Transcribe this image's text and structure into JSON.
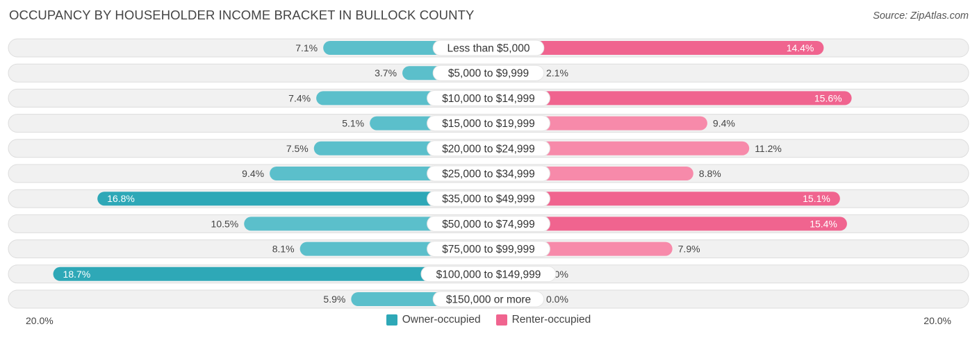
{
  "header": {
    "title": "OCCUPANCY BY HOUSEHOLDER INCOME BRACKET IN BULLOCK COUNTY",
    "source": "Source: ZipAtlas.com"
  },
  "colors": {
    "owner": "#5bbfcb",
    "owner_strong": "#2ea8b7",
    "renter": "#f78aaa",
    "renter_strong": "#f0648f",
    "row_bg": "#eeeeee"
  },
  "axis": {
    "left_label": "20.0%",
    "right_label": "20.0%"
  },
  "legend": {
    "owner_label": "Owner-occupied",
    "renter_label": "Renter-occupied"
  },
  "chart_data": {
    "type": "bar",
    "orientation": "horizontal-diverging",
    "title": "OCCUPANCY BY HOUSEHOLDER INCOME BRACKET IN BULLOCK COUNTY",
    "xlim": [
      -20,
      20
    ],
    "categories": [
      "Less than $5,000",
      "$5,000 to $9,999",
      "$10,000 to $14,999",
      "$15,000 to $19,999",
      "$20,000 to $24,999",
      "$25,000 to $34,999",
      "$35,000 to $49,999",
      "$50,000 to $74,999",
      "$75,000 to $99,999",
      "$100,000 to $149,999",
      "$150,000 or more"
    ],
    "series": [
      {
        "name": "Owner-occupied",
        "values": [
          7.1,
          3.7,
          7.4,
          5.1,
          7.5,
          9.4,
          16.8,
          10.5,
          8.1,
          18.7,
          5.9
        ],
        "labels": [
          "7.1%",
          "3.7%",
          "7.4%",
          "5.1%",
          "7.5%",
          "9.4%",
          "16.8%",
          "10.5%",
          "8.1%",
          "18.7%",
          "5.9%"
        ]
      },
      {
        "name": "Renter-occupied",
        "values": [
          14.4,
          2.1,
          15.6,
          9.4,
          11.2,
          8.8,
          15.1,
          15.4,
          7.9,
          0.0,
          0.0
        ],
        "labels": [
          "14.4%",
          "2.1%",
          "15.6%",
          "9.4%",
          "11.2%",
          "8.8%",
          "15.1%",
          "15.4%",
          "7.9%",
          "0.0%",
          "0.0%"
        ]
      }
    ],
    "legend_position": "bottom-center",
    "grid": false
  }
}
